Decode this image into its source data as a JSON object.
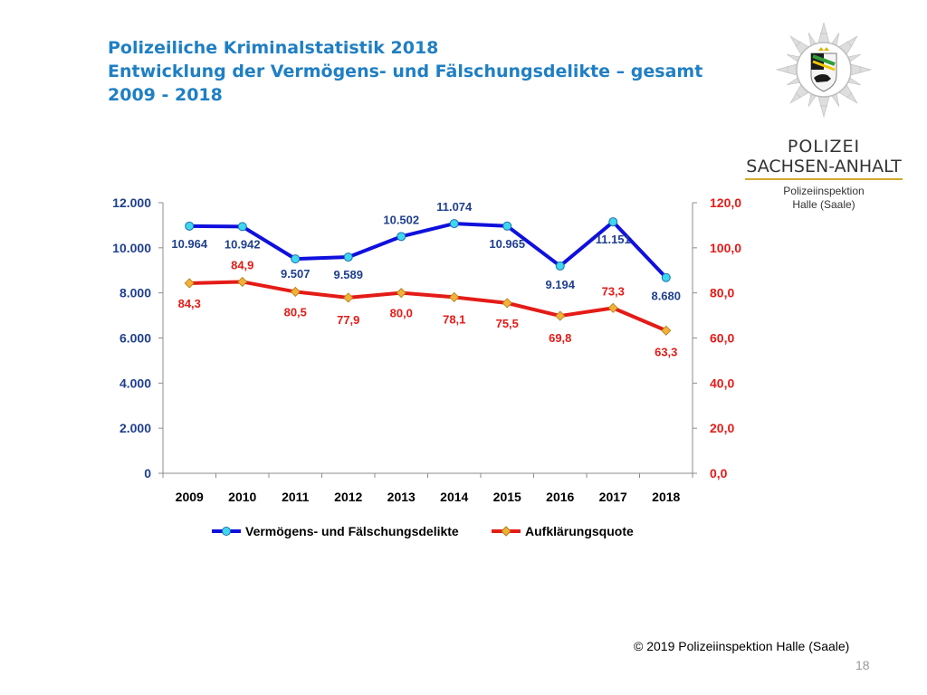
{
  "slide": {
    "title_line1": "Polizeiliche Kriminalstatistik 2018",
    "title_line2": "Entwicklung der Vermögens- und Fälschungsdelikte – gesamt",
    "title_line3": "2009 - 2018",
    "copyright": "© 2019 Polizeiinspektion Halle (Saale)",
    "page_number": "18"
  },
  "logo": {
    "line1": "POLIZEI",
    "line2": "SACHSEN-ANHALT",
    "sub1": "Polizeiinspektion",
    "sub2": "Halle (Saale)",
    "icon": "police-star-badge-icon"
  },
  "colors": {
    "title": "#1f7fc4",
    "series_cases": "#1010dd",
    "series_cases_marker": "#3fd7ee",
    "series_rate": "#e41b17",
    "series_rate_marker": "#f2b23a",
    "left_axis_text": "#1f3f8f",
    "right_axis_text": "#e41b17"
  },
  "chart_data": {
    "type": "line",
    "x": [
      "2009",
      "2010",
      "2011",
      "2012",
      "2013",
      "2014",
      "2015",
      "2016",
      "2017",
      "2018"
    ],
    "series": [
      {
        "name": "Vermögens- und Fälschungsdelikte",
        "axis": "left",
        "values": [
          10964,
          10942,
          9507,
          9589,
          10502,
          11074,
          10965,
          9194,
          11151,
          8680
        ],
        "labels": [
          "10.964",
          "10.942",
          "9.507",
          "9.589",
          "10.502",
          "11.074",
          "10.965",
          "9.194",
          "11.151",
          "8.680"
        ]
      },
      {
        "name": "Aufklärungsquote",
        "axis": "right",
        "values": [
          84.3,
          84.9,
          80.5,
          77.9,
          80.0,
          78.1,
          75.5,
          69.8,
          73.3,
          63.3
        ],
        "labels": [
          "84,3",
          "84,9",
          "80,5",
          "77,9",
          "80,0",
          "78,1",
          "75,5",
          "69,8",
          "73,3",
          "63,3"
        ]
      }
    ],
    "y_left": {
      "range": [
        0,
        12000
      ],
      "ticks": [
        "0",
        "2.000",
        "4.000",
        "6.000",
        "8.000",
        "10.000",
        "12.000"
      ]
    },
    "y_right": {
      "range": [
        0,
        120
      ],
      "ticks": [
        "0,0",
        "20,0",
        "40,0",
        "60,0",
        "80,0",
        "100,0",
        "120,0"
      ]
    },
    "grid": false,
    "legend_position": "bottom"
  }
}
